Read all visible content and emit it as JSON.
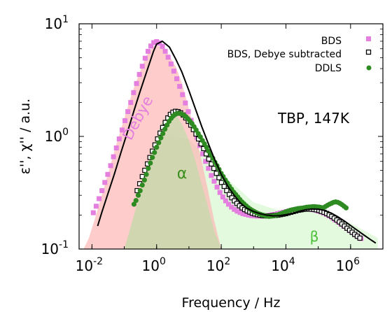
{
  "chart_data": {
    "type": "scatter",
    "xlabel": "Frequency / Hz",
    "ylabel": "ε'', χ'' / a.u.",
    "x_scale": "log",
    "y_scale": "log",
    "xlim": [
      0.004,
      10000000
    ],
    "ylim": [
      0.1,
      10
    ],
    "x_ticks": [
      {
        "value": 0.01,
        "base": "10",
        "exp": "-2"
      },
      {
        "value": 1,
        "base": "10",
        "exp": "0"
      },
      {
        "value": 100,
        "base": "10",
        "exp": "2"
      },
      {
        "value": 10000,
        "base": "10",
        "exp": "4"
      },
      {
        "value": 1000000,
        "base": "10",
        "exp": "6"
      }
    ],
    "y_ticks": [
      {
        "value": 0.1,
        "base": "10",
        "exp": "-1"
      },
      {
        "value": 1,
        "base": "10",
        "exp": "0"
      },
      {
        "value": 10,
        "base": "10",
        "exp": "1"
      }
    ],
    "legend_position": "top-right",
    "series": [
      {
        "name": "BDS",
        "marker": "filled-square",
        "color": "#e47fe0",
        "x": [
          0.011,
          0.0135,
          0.0166,
          0.0204,
          0.025,
          0.0307,
          0.0377,
          0.0463,
          0.0568,
          0.0697,
          0.0856,
          0.105,
          0.129,
          0.158,
          0.194,
          0.239,
          0.293,
          0.36,
          0.441,
          0.542,
          0.665,
          0.816,
          1.0,
          1.23,
          1.51,
          1.85,
          2.27,
          2.79,
          3.42,
          4.2,
          5.16,
          6.33,
          7.77,
          9.54,
          11.7,
          14.4,
          17.7,
          21.7,
          26.6,
          32.7,
          40.1,
          49.2,
          60.4,
          74.2,
          91.1,
          112,
          137,
          168,
          207,
          254,
          311,
          382,
          469,
          576,
          707,
          868,
          1070,
          1310,
          1600,
          1970,
          2420,
          2970,
          3640,
          4470,
          5490,
          6740,
          8270,
          10200,
          12500,
          15300,
          18800,
          23100,
          28300,
          34800,
          42700,
          52400,
          64300,
          79000,
          96900,
          119000,
          146000,
          180000,
          220000,
          270000,
          332000,
          408000,
          500000,
          614000,
          754000,
          926000,
          1140000,
          1400000,
          1710000,
          2100000
        ],
        "y": [
          0.21,
          0.24,
          0.28,
          0.33,
          0.39,
          0.46,
          0.55,
          0.66,
          0.79,
          0.95,
          1.14,
          1.38,
          1.66,
          2.0,
          2.45,
          2.95,
          3.55,
          4.2,
          4.95,
          5.7,
          6.35,
          6.8,
          6.95,
          6.75,
          6.3,
          5.7,
          5.05,
          4.4,
          3.8,
          3.25,
          2.78,
          2.35,
          1.98,
          1.66,
          1.39,
          1.16,
          0.98,
          0.83,
          0.7,
          0.6,
          0.52,
          0.45,
          0.4,
          0.355,
          0.318,
          0.29,
          0.268,
          0.25,
          0.236,
          0.225,
          0.217,
          0.211,
          0.206,
          0.203,
          0.2,
          0.198,
          0.197,
          0.196,
          0.196,
          0.197,
          0.198,
          0.199,
          0.201,
          0.203,
          0.206,
          0.209,
          0.212,
          0.215,
          0.218,
          0.221,
          0.223,
          0.225,
          0.226,
          0.227,
          0.227,
          0.226,
          0.224,
          0.222,
          0.218,
          0.214,
          0.209,
          0.203,
          0.197,
          0.19,
          0.182,
          0.175,
          0.167,
          0.16,
          0.153,
          0.146,
          0.14,
          0.134,
          0.129,
          0.124
        ]
      },
      {
        "name": "BDS, Debye subtracted",
        "marker": "open-square",
        "color": "#000000",
        "x": [
          0.25,
          0.3,
          0.36,
          0.43,
          0.52,
          0.62,
          0.74,
          0.89,
          1.07,
          1.28,
          1.54,
          1.85,
          2.22,
          2.66,
          3.19,
          3.83,
          4.6,
          5.52,
          6.62,
          7.95,
          9.54,
          11.4,
          13.7,
          16.5,
          19.8,
          23.7,
          28.5,
          34.2,
          41.0,
          49.2,
          59.1,
          70.9,
          85.1,
          102,
          123,
          147,
          177,
          212,
          254,
          305,
          366,
          440,
          528,
          633,
          760,
          912,
          1090,
          1310,
          1580,
          1890,
          2270,
          2720,
          3270,
          3920,
          4710,
          5650,
          6780,
          8130,
          9760,
          11700,
          14100,
          16900,
          20200,
          24300,
          29200,
          35000,
          42000,
          50400,
          60500,
          72600,
          87100,
          105000,
          125000,
          151000,
          181000,
          217000,
          260000,
          312000,
          375000,
          450000,
          540000,
          648000,
          778000,
          933000,
          1120000,
          1340000,
          1610000,
          1940000
        ],
        "y": [
          0.33,
          0.38,
          0.44,
          0.5,
          0.57,
          0.65,
          0.74,
          0.84,
          0.95,
          1.07,
          1.2,
          1.33,
          1.46,
          1.57,
          1.64,
          1.67,
          1.66,
          1.62,
          1.55,
          1.46,
          1.36,
          1.26,
          1.15,
          1.05,
          0.95,
          0.86,
          0.78,
          0.7,
          0.63,
          0.57,
          0.52,
          0.47,
          0.43,
          0.39,
          0.36,
          0.33,
          0.305,
          0.285,
          0.268,
          0.254,
          0.242,
          0.232,
          0.224,
          0.218,
          0.213,
          0.208,
          0.205,
          0.202,
          0.2,
          0.198,
          0.197,
          0.197,
          0.197,
          0.198,
          0.199,
          0.2,
          0.202,
          0.204,
          0.206,
          0.209,
          0.212,
          0.215,
          0.218,
          0.221,
          0.223,
          0.225,
          0.226,
          0.227,
          0.226,
          0.225,
          0.223,
          0.22,
          0.216,
          0.212,
          0.207,
          0.201,
          0.195,
          0.188,
          0.181,
          0.174,
          0.167,
          0.16,
          0.153,
          0.147,
          0.141,
          0.135,
          0.13,
          0.125
        ]
      },
      {
        "name": "DDLS",
        "marker": "filled-circle",
        "color": "#2e8b22",
        "x": [
          0.2,
          0.23,
          0.27,
          0.31,
          0.36,
          0.42,
          0.48,
          0.55,
          0.64,
          0.74,
          0.86,
          1.0,
          1.16,
          1.35,
          1.56,
          1.81,
          2.1,
          2.43,
          2.82,
          3.27,
          3.79,
          4.4,
          5.1,
          5.92,
          6.86,
          7.96,
          9.23,
          10.7,
          12.4,
          14.4,
          16.7,
          19.4,
          22.5,
          26.1,
          30.2,
          35.1,
          40.7,
          47.2,
          54.7,
          63.5,
          73.6,
          85.4,
          99.1,
          115,
          133,
          155,
          179,
          208,
          241,
          280,
          325,
          377,
          437,
          507,
          588,
          682,
          791,
          917,
          1060,
          1230,
          1430,
          1660,
          1930,
          2230,
          2590,
          3010,
          3490,
          4050,
          4690,
          5440,
          6310,
          7320,
          8490,
          9850,
          11400,
          13200,
          15300,
          17800,
          20600,
          23900,
          27800,
          32200,
          37400,
          43300,
          50300,
          58300,
          67600,
          78400,
          91000,
          106000,
          122000,
          142000,
          165000,
          191000,
          222000,
          257000,
          298000,
          346000,
          401000,
          466000,
          540000,
          627000,
          727000
        ],
        "y": [
          0.25,
          0.27,
          0.3,
          0.33,
          0.37,
          0.41,
          0.46,
          0.52,
          0.58,
          0.65,
          0.72,
          0.8,
          0.88,
          0.97,
          1.06,
          1.16,
          1.26,
          1.36,
          1.45,
          1.52,
          1.57,
          1.6,
          1.6,
          1.58,
          1.55,
          1.5,
          1.44,
          1.37,
          1.3,
          1.22,
          1.14,
          1.06,
          0.99,
          0.92,
          0.86,
          0.8,
          0.74,
          0.69,
          0.64,
          0.59,
          0.55,
          0.51,
          0.47,
          0.44,
          0.41,
          0.385,
          0.36,
          0.34,
          0.32,
          0.305,
          0.29,
          0.275,
          0.262,
          0.252,
          0.242,
          0.233,
          0.226,
          0.22,
          0.215,
          0.21,
          0.206,
          0.203,
          0.2,
          0.198,
          0.196,
          0.195,
          0.196,
          0.197,
          0.199,
          0.201,
          0.204,
          0.207,
          0.21,
          0.214,
          0.217,
          0.22,
          0.223,
          0.225,
          0.227,
          0.229,
          0.23,
          0.231,
          0.233,
          0.235,
          0.236,
          0.237,
          0.238,
          0.238,
          0.237,
          0.236,
          0.234,
          0.232,
          0.238,
          0.244,
          0.25,
          0.255,
          0.26,
          0.262,
          0.26,
          0.255,
          0.248,
          0.24,
          0.232
        ]
      }
    ],
    "fit_curve": {
      "color": "#000000",
      "x": [
        0.015,
        0.02,
        0.03,
        0.05,
        0.08,
        0.12,
        0.2,
        0.3,
        0.5,
        0.8,
        1.0,
        1.5,
        2.5,
        4,
        6,
        10,
        16,
        25,
        40,
        60,
        100,
        160,
        250,
        400,
        600,
        1000,
        1600,
        2500,
        4000,
        6300,
        10000,
        16000,
        25000,
        40000,
        63000,
        100000,
        160000,
        250000,
        400000,
        630000,
        1000000,
        1600000,
        2500000,
        4000000,
        6000000
      ],
      "y": [
        0.16,
        0.21,
        0.3,
        0.47,
        0.73,
        1.05,
        1.7,
        2.45,
        3.8,
        5.7,
        6.6,
        7.0,
        6.2,
        4.8,
        3.75,
        2.55,
        1.75,
        1.22,
        0.86,
        0.64,
        0.46,
        0.36,
        0.3,
        0.255,
        0.232,
        0.215,
        0.206,
        0.2,
        0.197,
        0.198,
        0.202,
        0.208,
        0.216,
        0.223,
        0.227,
        0.226,
        0.22,
        0.209,
        0.194,
        0.178,
        0.162,
        0.147,
        0.134,
        0.122,
        0.113
      ]
    },
    "fill_regions": [
      {
        "label": "Debye",
        "color": "#ffb0b0",
        "x": [
          0.0055,
          0.008,
          0.012,
          0.02,
          0.035,
          0.06,
          0.1,
          0.18,
          0.3,
          0.5,
          0.8,
          1.0,
          1.5,
          2.5,
          4,
          6,
          10,
          16,
          25,
          40,
          60,
          100
        ],
        "y": [
          0.1,
          0.125,
          0.18,
          0.3,
          0.52,
          0.9,
          1.45,
          2.5,
          3.7,
          5.3,
          6.3,
          6.45,
          6.2,
          5.2,
          4.1,
          3.0,
          1.75,
          1.05,
          0.6,
          0.32,
          0.18,
          0.1
        ]
      },
      {
        "label": "α",
        "color": "#b0e0a0",
        "x": [
          0.1,
          0.15,
          0.25,
          0.4,
          0.6,
          1.0,
          1.5,
          2.5,
          4,
          6,
          10,
          16,
          25,
          40,
          60,
          100
        ],
        "y": [
          0.1,
          0.15,
          0.25,
          0.42,
          0.66,
          1.02,
          1.35,
          1.6,
          1.55,
          1.3,
          0.92,
          0.6,
          0.37,
          0.23,
          0.145,
          0.1
        ]
      },
      {
        "label": "β",
        "color": "#d4f7cc",
        "x": [
          0.1,
          1,
          10,
          100,
          1000,
          10000,
          100000,
          1000000,
          7000000,
          7000000,
          1000000,
          100000,
          10000,
          1000,
          100,
          10,
          1,
          0.1
        ],
        "y": [
          0.1,
          1.02,
          0.95,
          0.47,
          0.26,
          0.21,
          0.22,
          0.17,
          0.125,
          0.1,
          0.1,
          0.1,
          0.1,
          0.1,
          0.1,
          0.1,
          0.1,
          0.1
        ]
      }
    ],
    "annotations": [
      {
        "text": "TBP, 147K",
        "color": "#000000"
      },
      {
        "text": "Debye",
        "color": "#e47fe0"
      },
      {
        "text": "α",
        "color": "#3b8f1c"
      },
      {
        "text": "β",
        "color": "#4cbf3a"
      }
    ]
  }
}
